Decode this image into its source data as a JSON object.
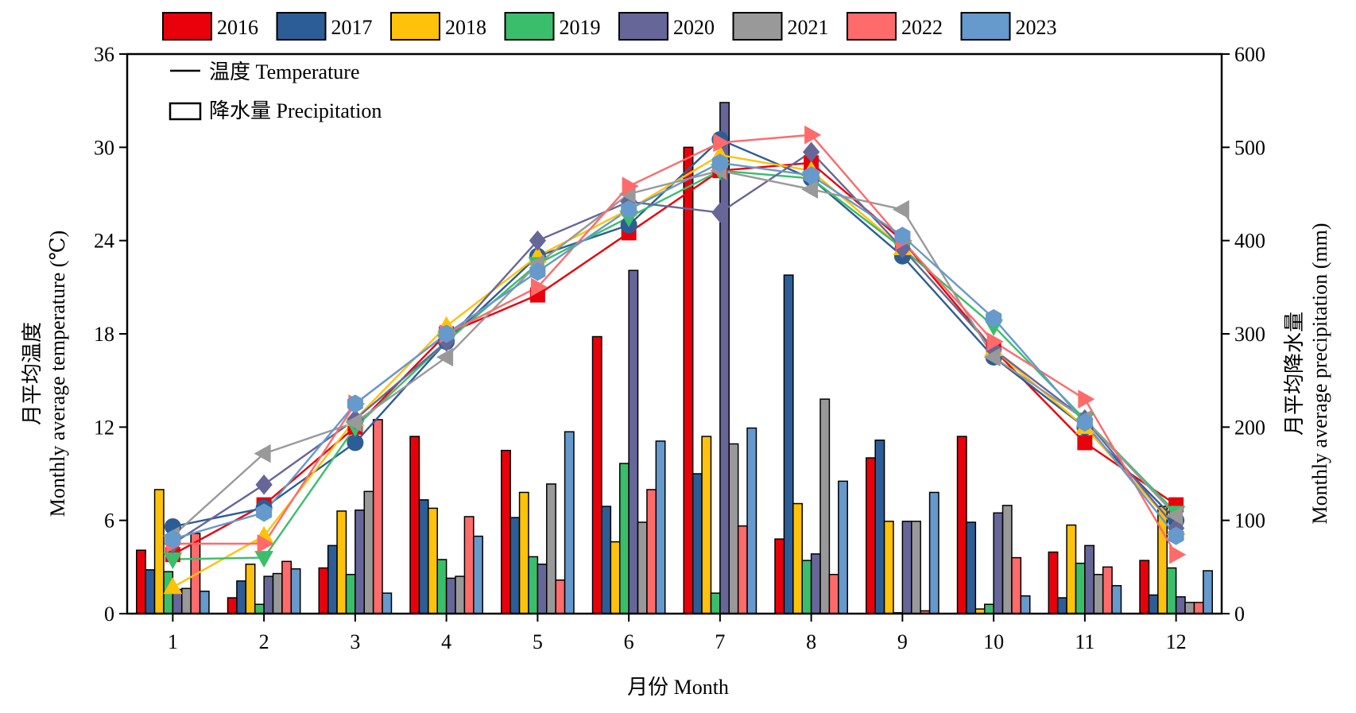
{
  "chart_data": {
    "type": "bar+line",
    "categories": [
      "1",
      "2",
      "3",
      "4",
      "5",
      "6",
      "7",
      "8",
      "9",
      "10",
      "11",
      "12"
    ],
    "xlabel": "月份 Month",
    "ylabel_left": [
      "月平均温度",
      "Monthly average temperature (℃)"
    ],
    "ylabel_right": [
      "月平均降水量",
      "Monthly average precipitation (mm)"
    ],
    "ylim_left": [
      0,
      36
    ],
    "yticks_left": [
      0,
      6,
      12,
      18,
      24,
      30,
      36
    ],
    "ylim_right": [
      0,
      600
    ],
    "yticks_right": [
      0,
      100,
      200,
      300,
      400,
      500,
      600
    ],
    "legend_years_position": "top",
    "legend_type_position": "top-left",
    "legend_type": {
      "line": "温度 Temperature",
      "bar": "降水量 Precipitation"
    },
    "grid": false,
    "series": [
      {
        "name": "2016",
        "color": "#E8000B",
        "marker": "square",
        "temperature": [
          3.8,
          7.0,
          12.0,
          18.0,
          20.5,
          24.5,
          28.5,
          29.0,
          24.0,
          17.0,
          11.0,
          7.0
        ],
        "precipitation": [
          68,
          17,
          49,
          190,
          175,
          297,
          500,
          80,
          167,
          190,
          66,
          57
        ]
      },
      {
        "name": "2017",
        "color": "#2D5D96",
        "marker": "circle",
        "temperature": [
          5.6,
          6.8,
          11.0,
          17.5,
          23.0,
          25.0,
          30.5,
          28.0,
          23.0,
          16.5,
          12.0,
          6.0
        ],
        "precipitation": [
          47,
          35,
          73,
          122,
          103,
          115,
          150,
          363,
          186,
          98,
          17,
          20
        ]
      },
      {
        "name": "2018",
        "color": "#FFC20A",
        "marker": "triangle-up",
        "temperature": [
          1.7,
          5.0,
          12.5,
          18.5,
          23.0,
          26.0,
          29.5,
          28.5,
          23.5,
          17.0,
          12.0,
          5.5
        ],
        "precipitation": [
          133,
          53,
          110,
          113,
          130,
          77,
          190,
          118,
          99,
          5,
          95,
          115
        ]
      },
      {
        "name": "2019",
        "color": "#3BBE6B",
        "marker": "triangle-down",
        "temperature": [
          3.5,
          3.6,
          12.0,
          17.5,
          22.5,
          25.5,
          28.5,
          28.0,
          23.5,
          18.5,
          12.5,
          6.5
        ],
        "precipitation": [
          45,
          10,
          42,
          58,
          61,
          161,
          22,
          57,
          1,
          10,
          54,
          49
        ]
      },
      {
        "name": "2020",
        "color": "#666699",
        "marker": "diamond",
        "temperature": [
          4.5,
          8.3,
          12.5,
          17.5,
          24.0,
          26.5,
          25.8,
          29.7,
          23.5,
          17.0,
          12.5,
          5.5
        ],
        "precipitation": [
          26,
          40,
          111,
          38,
          53,
          368,
          548,
          64,
          99,
          108,
          73,
          18
        ]
      },
      {
        "name": "2021",
        "color": "#999999",
        "marker": "triangle-left",
        "temperature": [
          5.0,
          10.3,
          12.3,
          16.5,
          22.5,
          27.0,
          28.5,
          27.3,
          26.0,
          16.5,
          12.5,
          6.3
        ],
        "precipitation": [
          27,
          43,
          131,
          40,
          139,
          98,
          182,
          230,
          99,
          116,
          42,
          12
        ]
      },
      {
        "name": "2022",
        "color": "#FF6A6A",
        "marker": "triangle-right",
        "temperature": [
          4.5,
          4.5,
          13.5,
          18.0,
          21.0,
          27.5,
          30.3,
          30.8,
          24.0,
          17.5,
          13.8,
          3.8
        ],
        "precipitation": [
          86,
          56,
          208,
          104,
          36,
          133,
          94,
          42,
          3,
          60,
          50,
          12
        ]
      },
      {
        "name": "2023",
        "color": "#6699CC",
        "marker": "hexagon",
        "temperature": [
          4.8,
          6.5,
          13.5,
          18.0,
          22.0,
          26.0,
          29.0,
          28.2,
          24.3,
          19.0,
          12.3,
          5.0
        ],
        "precipitation": [
          24,
          48,
          22,
          83,
          195,
          185,
          199,
          142,
          130,
          19,
          30,
          46
        ]
      }
    ]
  }
}
